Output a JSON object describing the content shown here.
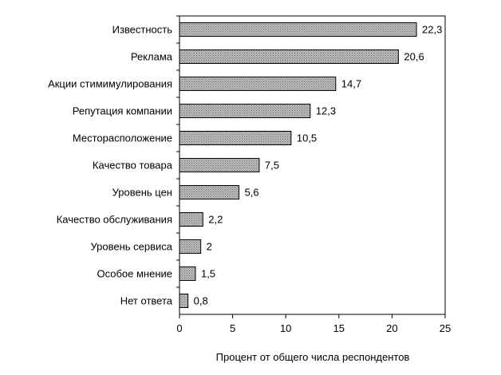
{
  "chart_data": {
    "type": "bar",
    "orientation": "horizontal",
    "categories": [
      "Известность",
      "Реклама",
      "Акции стимимулирования",
      "Репутация компании",
      "Месторасположение",
      "Качество товара",
      "Уровень цен",
      "Качество обслуживания",
      "Уровень сервиса",
      "Особое мнение",
      "Нет ответа"
    ],
    "values": [
      22.3,
      20.6,
      14.7,
      12.3,
      10.5,
      7.5,
      5.6,
      2.2,
      2,
      1.5,
      0.8
    ],
    "value_labels": [
      "22,3",
      "20,6",
      "14,7",
      "12,3",
      "10,5",
      "7,5",
      "5,6",
      "2,2",
      "2",
      "1,5",
      "0,8"
    ],
    "xlabel": "Процент от общего числа респондентов",
    "ylabel": "",
    "xlim": [
      0,
      25
    ],
    "xticks": [
      0,
      5,
      10,
      15,
      20,
      25
    ],
    "grid": false,
    "legend": "none",
    "bar_color": "#a6a6a6",
    "bar_pattern": "dotted",
    "bar_border_color": "#000000"
  }
}
